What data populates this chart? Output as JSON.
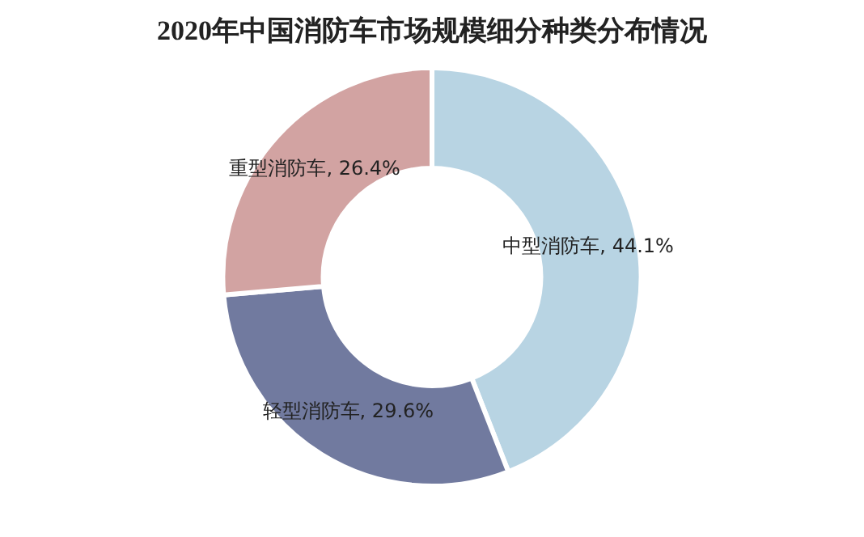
{
  "chart_data": {
    "type": "donut",
    "title": "2020年中国消防车市场规模细分种类分布情况",
    "categories": [
      "中型消防车",
      "轻型消防车",
      "重型消防车"
    ],
    "values": [
      44.1,
      29.6,
      26.4
    ],
    "colors": [
      "#b8d4e3",
      "#717a9f",
      "#d2a3a2"
    ],
    "value_labels": [
      "44.1%",
      "29.6%",
      "26.4%"
    ],
    "legend": false
  }
}
